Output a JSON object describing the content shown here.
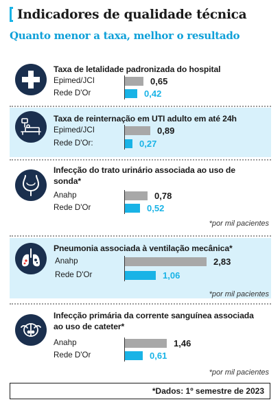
{
  "header": {
    "title": "Indicadores de qualidade técnica",
    "subtitle": "Quanto menor a taxa, melhor o resultado"
  },
  "chart_data": {
    "type": "bar",
    "orientation": "horizontal",
    "indicators": [
      {
        "title": "Taxa de letalidade padronizada do hospital",
        "icon": "hospital-cross-icon",
        "highlight": false,
        "rows": [
          {
            "label": "Epimed/JCI",
            "value": 0.65,
            "display": "0,65",
            "color": "grey"
          },
          {
            "label": "Rede D'Or",
            "value": 0.42,
            "display": "0,42",
            "color": "blue"
          }
        ],
        "note": ""
      },
      {
        "title": "Taxa de reinternação em UTI adulto em até 24h",
        "icon": "icu-bed-icon",
        "highlight": true,
        "rows": [
          {
            "label": "Epimed/JCI",
            "value": 0.89,
            "display": "0,89",
            "color": "grey"
          },
          {
            "label": "Rede D'Or:",
            "value": 0.27,
            "display": "0,27",
            "color": "blue"
          }
        ],
        "note": ""
      },
      {
        "title": "Infecção do trato urinário associada ao uso de sonda*",
        "icon": "bladder-icon",
        "highlight": false,
        "rows": [
          {
            "label": "Anahp",
            "value": 0.78,
            "display": "0,78",
            "color": "grey"
          },
          {
            "label": "Rede D'Or",
            "value": 0.52,
            "display": "0,52",
            "color": "blue"
          }
        ],
        "note": "*por mil pacientes"
      },
      {
        "title": "Pneumonia associada à ventilação mecânica*",
        "icon": "lungs-icon",
        "highlight": true,
        "rows": [
          {
            "label": "Anahp",
            "value": 2.83,
            "display": "2,83",
            "color": "grey"
          },
          {
            "label": "Rede D'Or",
            "value": 1.06,
            "display": "1,06",
            "color": "blue"
          }
        ],
        "note": "*por mil pacientes"
      },
      {
        "title": "Infecção primária da corrente sanguínea associada ao uso de cateter*",
        "icon": "catheter-icon",
        "highlight": false,
        "rows": [
          {
            "label": "Anahp",
            "value": 1.46,
            "display": "1,46",
            "color": "grey"
          },
          {
            "label": "Rede D'Or",
            "value": 0.61,
            "display": "0,61",
            "color": "blue"
          }
        ],
        "note": "*por mil pacientes"
      }
    ],
    "colors": {
      "comparison": "#a8a8a8",
      "rede_dor": "#19b3e6",
      "highlight_bg": "#d8f1fb",
      "icon_bg": "#1a2f4e"
    }
  },
  "footer": {
    "text": "*Dados: 1º semestre de 2023"
  }
}
